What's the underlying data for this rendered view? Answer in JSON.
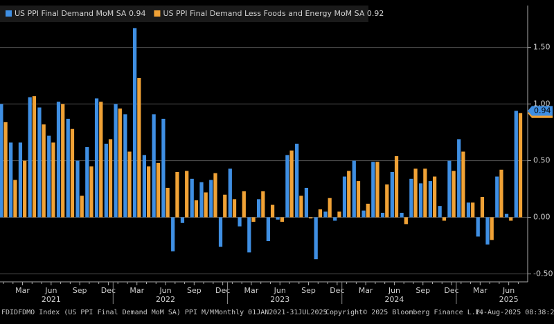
{
  "chart_data": {
    "type": "bar",
    "legend_position": "top-left",
    "categories": [
      null,
      null,
      "Mar",
      null,
      null,
      "Jun",
      null,
      null,
      "Sep",
      null,
      null,
      "Dec",
      null,
      null,
      "Mar",
      null,
      null,
      "Jun",
      null,
      null,
      "Sep",
      null,
      null,
      "Dec",
      null,
      null,
      "Mar",
      null,
      null,
      "Jun",
      null,
      null,
      "Sep",
      null,
      null,
      "Dec",
      null,
      null,
      "Mar",
      null,
      null,
      "Jun",
      null,
      null,
      "Sep",
      null,
      null,
      "Dec",
      null,
      null,
      "Mar",
      null,
      null,
      "Jun",
      null
    ],
    "year_labels": [
      "2021",
      "2022",
      "2023",
      "2024",
      "2025"
    ],
    "series": [
      {
        "name": "US PPI Final Demand MoM SA 0.94",
        "color": "#3f8fe3",
        "values": [
          1.0,
          0.66,
          0.66,
          1.06,
          0.97,
          0.72,
          1.02,
          0.87,
          0.5,
          0.62,
          1.05,
          0.65,
          1.0,
          0.91,
          1.67,
          0.55,
          0.91,
          0.87,
          -0.3,
          -0.05,
          0.34,
          0.31,
          0.33,
          -0.26,
          0.43,
          -0.08,
          -0.31,
          0.16,
          -0.21,
          -0.02,
          0.55,
          0.65,
          0.26,
          -0.37,
          0.05,
          -0.03,
          0.36,
          0.5,
          0.06,
          0.49,
          0.04,
          0.4,
          0.04,
          0.34,
          0.3,
          0.32,
          0.1,
          0.5,
          0.69,
          0.13,
          -0.17,
          -0.24,
          0.36,
          0.03,
          0.94
        ]
      },
      {
        "name": "US PPI Final Demand Less Foods and Energy MoM SA 0.92",
        "color": "#f0a236",
        "values": [
          0.84,
          0.33,
          0.5,
          1.07,
          0.82,
          0.66,
          1.0,
          0.78,
          0.19,
          0.45,
          1.02,
          0.69,
          0.96,
          0.58,
          1.23,
          0.45,
          0.48,
          0.26,
          0.4,
          0.41,
          0.15,
          0.22,
          0.39,
          0.2,
          0.16,
          0.23,
          -0.04,
          0.23,
          0.11,
          -0.04,
          0.59,
          0.19,
          -0.01,
          0.07,
          0.17,
          0.05,
          0.41,
          0.32,
          0.12,
          0.49,
          0.29,
          0.54,
          -0.06,
          0.43,
          0.43,
          0.36,
          -0.03,
          0.41,
          0.58,
          0.13,
          0.18,
          -0.2,
          0.42,
          -0.03,
          0.92
        ]
      }
    ],
    "ylim": [
      -0.57,
      1.87
    ],
    "yticks": [
      {
        "value": 1.5,
        "label": "1.50"
      },
      {
        "value": 1,
        "label": "1.00"
      },
      {
        "value": 0.5,
        "label": "0.50"
      },
      {
        "value": 0,
        "label": "0.00"
      },
      {
        "value": -0.5,
        "label": "-0.50"
      }
    ],
    "grid": true,
    "footer": [
      "FDIDFDMO Index (US PPI Final Demand MoM SA) PPI M/M",
      "Monthly 01JAN2021-31JUL2025",
      "Copyright© 2025 Bloomberg Finance L.P.",
      "14-Aug-2025 08:38:21"
    ]
  }
}
